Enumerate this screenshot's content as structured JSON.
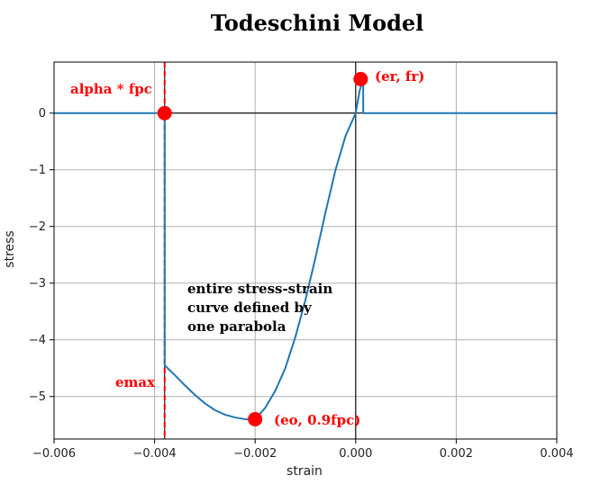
{
  "chart_data": {
    "type": "line",
    "title": "Todeschini Model",
    "xlabel": "strain",
    "ylabel": "stress",
    "xlim": [
      -0.006,
      0.004
    ],
    "ylim": [
      -5.75,
      0.9
    ],
    "grid": true,
    "x_ticks": [
      -0.006,
      -0.004,
      -0.002,
      0.0,
      0.002,
      0.004
    ],
    "x_tick_labels": [
      "−0.006",
      "−0.004",
      "−0.002",
      "0.000",
      "0.002",
      "0.004"
    ],
    "y_ticks": [
      0,
      -1,
      -2,
      -3,
      -4,
      -5
    ],
    "y_tick_labels": [
      "0",
      "−1",
      "−2",
      "−3",
      "−4",
      "−5"
    ],
    "series": [
      {
        "color": "#1f77b4",
        "x": [
          -0.006,
          -0.0038,
          -0.0038,
          -0.0036,
          -0.0034,
          -0.0032,
          -0.003,
          -0.0028,
          -0.0026,
          -0.0024,
          -0.0022,
          -0.0021,
          -0.002,
          -0.0019,
          -0.0018,
          -0.0016,
          -0.0014,
          -0.0012,
          -0.001,
          -0.0008,
          -0.0006,
          -0.0004,
          -0.0002,
          0.0,
          8e-05,
          0.00015,
          0.00015,
          0.004
        ],
        "y": [
          0,
          0,
          -4.45,
          -4.62,
          -4.8,
          -4.97,
          -5.12,
          -5.24,
          -5.32,
          -5.37,
          -5.4,
          -5.405,
          -5.4,
          -5.3,
          -5.2,
          -4.9,
          -4.5,
          -3.95,
          -3.3,
          -2.55,
          -1.75,
          -1.0,
          -0.4,
          0.0,
          0.4,
          0.6,
          0.0,
          0.0
        ]
      }
    ],
    "points": [
      {
        "x": -0.0038,
        "y": 0.0,
        "label": "alpha * fpc"
      },
      {
        "x": 0.0001,
        "y": 0.6,
        "label": "(er, fr)"
      },
      {
        "x": -0.002,
        "y": -5.4,
        "label": "(eo, 0.9fpc)"
      }
    ],
    "reference_lines": {
      "vertical_black": [
        -0.0038,
        0.0
      ],
      "horizontal_black": [
        0.0
      ],
      "vertical_red_dashed": -0.0038
    },
    "annotations": {
      "alpha_fpc": "alpha * fpc",
      "er_fr": "(er, fr)",
      "eo_fpc": "(eo, 0.9fpc)",
      "emax": "emax",
      "note_line1": "entire stress-strain",
      "note_line2": "curve defined by",
      "note_line3": "one parabola"
    },
    "colors": {
      "line": "#1f77b4",
      "marker": "#ff0000",
      "annotation": "#ff0000",
      "grid": "#b0b0b0"
    }
  }
}
